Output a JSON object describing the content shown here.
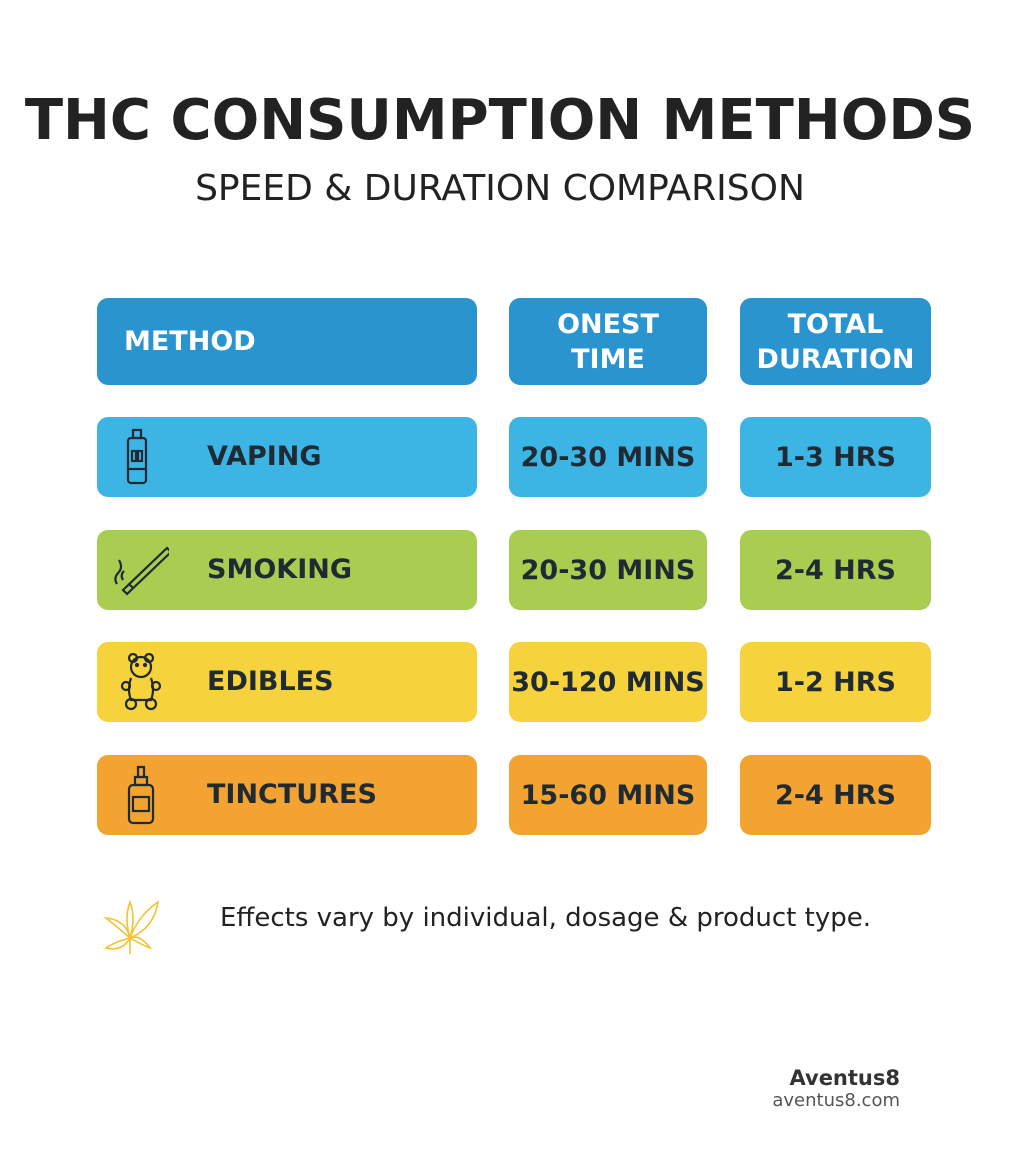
{
  "header": {
    "title": "THC CONSUMPTION METHODS",
    "subtitle": "SPEED & DURATION COMPARISON"
  },
  "table": {
    "columns": [
      "METHOD",
      "ONEST TIME",
      "TOTAL DURATION"
    ],
    "rows": [
      [
        "VAPING",
        "20-30 MINS",
        "1-3 HRS"
      ],
      [
        "SMOKING",
        "20-30 MINS",
        "2-4 HRS"
      ],
      [
        "EDIBLES",
        "30-120 MINS",
        "1-2 HRS"
      ],
      [
        "TINCTURES",
        "15-60 MINS",
        "2-4 HRS"
      ]
    ]
  },
  "note": "Effects vary by individual, dosage & product type.",
  "footer": {
    "brand": "Aventus8",
    "url": "aventus8.com"
  }
}
